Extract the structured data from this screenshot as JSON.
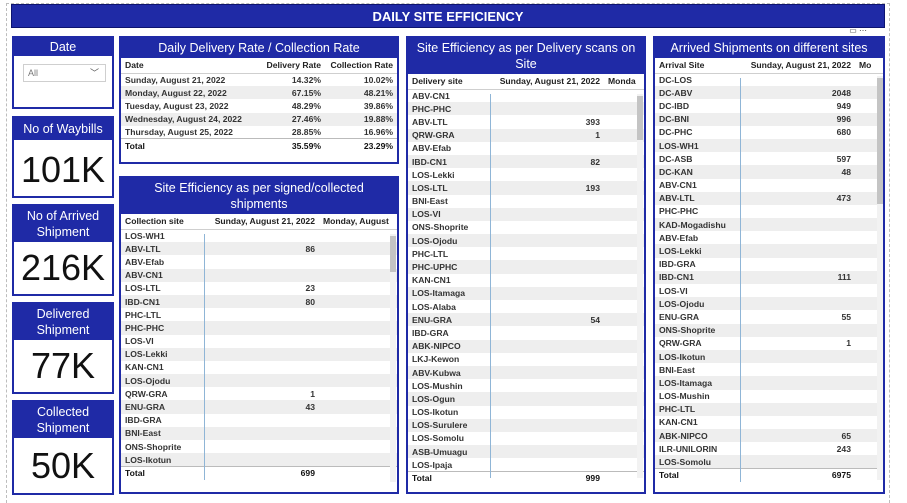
{
  "title": "DAILY SITE EFFICIENCY",
  "slicer": {
    "label": "Date",
    "value": "All"
  },
  "kpis": [
    {
      "label": "No of Waybills",
      "value": "101K"
    },
    {
      "label": "No of Arrived Shipment",
      "value": "216K"
    },
    {
      "label": "Delivered Shipment",
      "value": "77K"
    },
    {
      "label": "Collected Shipment",
      "value": "50K"
    }
  ],
  "rate_table": {
    "title": "Daily Delivery Rate / Collection Rate",
    "columns": [
      "Date",
      "Delivery Rate",
      "Collection Rate"
    ],
    "rows": [
      [
        "Sunday, August 21, 2022",
        "14.32%",
        "10.02%"
      ],
      [
        "Monday, August 22, 2022",
        "67.15%",
        "48.21%"
      ],
      [
        "Tuesday, August 23, 2022",
        "48.29%",
        "39.86%"
      ],
      [
        "Wednesday, August 24, 2022",
        "27.46%",
        "19.88%"
      ],
      [
        "Thursday, August 25, 2022",
        "28.85%",
        "16.96%"
      ]
    ],
    "total": [
      "Total",
      "35.59%",
      "23.29%"
    ]
  },
  "signed_table": {
    "title": "Site Efficiency as per signed/collected shipments",
    "columns": [
      "Collection site",
      "Sunday, August 21, 2022",
      "Monday, August"
    ],
    "rows": [
      [
        "LOS-WH1",
        ""
      ],
      [
        "ABV-LTL",
        "86"
      ],
      [
        "ABV-Efab",
        ""
      ],
      [
        "ABV-CN1",
        ""
      ],
      [
        "LOS-LTL",
        "23"
      ],
      [
        "IBD-CN1",
        "80"
      ],
      [
        "PHC-LTL",
        ""
      ],
      [
        "PHC-PHC",
        ""
      ],
      [
        "LOS-VI",
        ""
      ],
      [
        "LOS-Lekki",
        ""
      ],
      [
        "KAN-CN1",
        ""
      ],
      [
        "LOS-Ojodu",
        ""
      ],
      [
        "QRW-GRA",
        "1"
      ],
      [
        "ENU-GRA",
        "43"
      ],
      [
        "IBD-GRA",
        ""
      ],
      [
        "BNI-East",
        ""
      ],
      [
        "ONS-Shoprite",
        ""
      ],
      [
        "LOS-Ikotun",
        ""
      ]
    ],
    "total": [
      "Total",
      "699"
    ]
  },
  "delivery_table": {
    "title": "Site Efficiency as per Delivery scans on Site",
    "columns": [
      "Delivery site",
      "Sunday, August 21, 2022",
      "Monda"
    ],
    "rows": [
      [
        "ABV-CN1",
        ""
      ],
      [
        "PHC-PHC",
        ""
      ],
      [
        "ABV-LTL",
        "393"
      ],
      [
        "QRW-GRA",
        "1"
      ],
      [
        "ABV-Efab",
        ""
      ],
      [
        "IBD-CN1",
        "82"
      ],
      [
        "LOS-Lekki",
        ""
      ],
      [
        "LOS-LTL",
        "193"
      ],
      [
        "BNI-East",
        ""
      ],
      [
        "LOS-VI",
        ""
      ],
      [
        "ONS-Shoprite",
        ""
      ],
      [
        "LOS-Ojodu",
        ""
      ],
      [
        "PHC-LTL",
        ""
      ],
      [
        "PHC-UPHC",
        ""
      ],
      [
        "KAN-CN1",
        ""
      ],
      [
        "LOS-Itamaga",
        ""
      ],
      [
        "LOS-Alaba",
        ""
      ],
      [
        "ENU-GRA",
        "54"
      ],
      [
        "IBD-GRA",
        ""
      ],
      [
        "ABK-NIPCO",
        ""
      ],
      [
        "LKJ-Kewon",
        ""
      ],
      [
        "ABV-Kubwa",
        ""
      ],
      [
        "LOS-Mushin",
        ""
      ],
      [
        "LOS-Ogun",
        ""
      ],
      [
        "LOS-Ikotun",
        ""
      ],
      [
        "LOS-Surulere",
        ""
      ],
      [
        "LOS-Somolu",
        ""
      ],
      [
        "ASB-Umuagu",
        ""
      ],
      [
        "LOS-Ipaja",
        ""
      ]
    ],
    "total": [
      "Total",
      "999"
    ]
  },
  "arrival_table": {
    "title": "Arrived Shipments on different sites",
    "columns": [
      "Arrival Site",
      "Sunday, August 21, 2022",
      "Mo"
    ],
    "rows": [
      [
        "DC-LOS",
        ""
      ],
      [
        "DC-ABV",
        "2048"
      ],
      [
        "DC-IBD",
        "949"
      ],
      [
        "DC-BNI",
        "996"
      ],
      [
        "DC-PHC",
        "680"
      ],
      [
        "LOS-WH1",
        ""
      ],
      [
        "DC-ASB",
        "597"
      ],
      [
        "DC-KAN",
        "48"
      ],
      [
        "ABV-CN1",
        ""
      ],
      [
        "ABV-LTL",
        "473"
      ],
      [
        "PHC-PHC",
        ""
      ],
      [
        "KAD-Mogadishu",
        ""
      ],
      [
        "ABV-Efab",
        ""
      ],
      [
        "LOS-Lekki",
        ""
      ],
      [
        "IBD-GRA",
        ""
      ],
      [
        "IBD-CN1",
        "111"
      ],
      [
        "LOS-VI",
        ""
      ],
      [
        "LOS-Ojodu",
        ""
      ],
      [
        "ENU-GRA",
        "55"
      ],
      [
        "ONS-Shoprite",
        ""
      ],
      [
        "QRW-GRA",
        "1"
      ],
      [
        "LOS-Ikotun",
        ""
      ],
      [
        "BNI-East",
        ""
      ],
      [
        "LOS-Itamaga",
        ""
      ],
      [
        "LOS-Mushin",
        ""
      ],
      [
        "PHC-LTL",
        ""
      ],
      [
        "KAN-CN1",
        ""
      ],
      [
        "ABK-NIPCO",
        "65"
      ],
      [
        "ILR-UNILORIN",
        "243"
      ],
      [
        "LOS-Somolu",
        ""
      ]
    ],
    "total": [
      "Total",
      "6975"
    ]
  }
}
